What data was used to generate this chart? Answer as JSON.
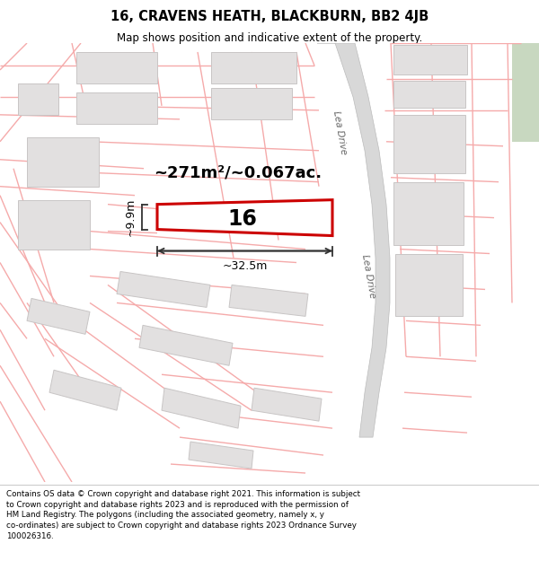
{
  "title_line1": "16, CRAVENS HEATH, BLACKBURN, BB2 4JB",
  "title_line2": "Map shows position and indicative extent of the property.",
  "area_text": "~271m²/~0.067ac.",
  "width_label": "~32.5m",
  "height_label": "~9.9m",
  "property_number": "16",
  "road_label": "Lea Drive",
  "footer_text": "Contains OS data © Crown copyright and database right 2021. This information is subject to Crown copyright and database rights 2023 and is reproduced with the permission of HM Land Registry. The polygons (including the associated geometry, namely x, y co-ordinates) are subject to Crown copyright and database rights 2023 Ordnance Survey 100026316.",
  "bg_color": "#ffffff",
  "map_bg": "#f8f7f7",
  "property_fill": "#ffffff",
  "property_edge": "#cc0000",
  "road_fill": "#d8d8d8",
  "road_edge": "#bbbbbb",
  "green_fill": "#c8d8c0",
  "street_line_color": "#f5aaaa",
  "plot_line_color": "#f0a0a0",
  "building_fill": "#e2e0e0",
  "building_edge": "#c8c5c5",
  "dim_color": "#333333",
  "text_color": "#000000",
  "footer_bg": "#ffffff",
  "header_bg": "#ffffff"
}
